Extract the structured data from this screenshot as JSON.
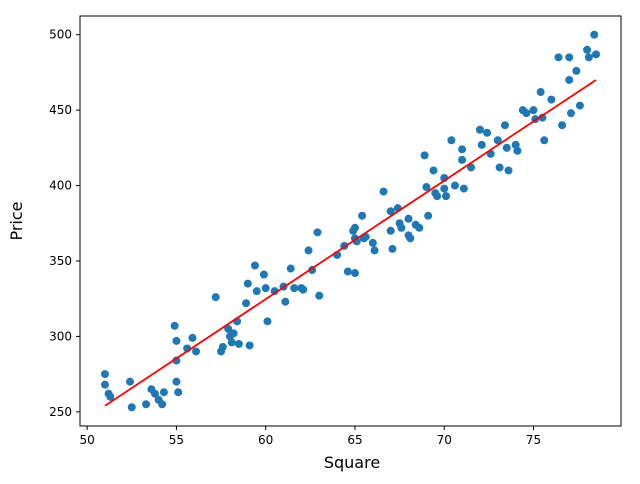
{
  "chart_data": {
    "type": "scatter",
    "title": "",
    "xlabel": "Square",
    "ylabel": "Price",
    "xlim": [
      49.6,
      79.9
    ],
    "ylim": [
      240.6,
      512.4
    ],
    "x_ticks": [
      50,
      55,
      60,
      65,
      70,
      75
    ],
    "y_ticks": [
      250,
      300,
      350,
      400,
      450,
      500
    ],
    "grid": false,
    "legend": "none",
    "point_color": "#1f77b4",
    "line_color": "#ff0000",
    "regression_line": {
      "x1": 51.0,
      "y1": 254,
      "x2": 78.5,
      "y2": 470
    },
    "points": [
      [
        51.0,
        275
      ],
      [
        51.0,
        268
      ],
      [
        51.2,
        262
      ],
      [
        51.3,
        260
      ],
      [
        52.4,
        270
      ],
      [
        52.5,
        253
      ],
      [
        53.3,
        255
      ],
      [
        53.6,
        265
      ],
      [
        53.8,
        262
      ],
      [
        54.0,
        258
      ],
      [
        54.2,
        255
      ],
      [
        54.3,
        263
      ],
      [
        54.9,
        307
      ],
      [
        55.0,
        297
      ],
      [
        55.0,
        284
      ],
      [
        55.0,
        270
      ],
      [
        55.1,
        263
      ],
      [
        55.6,
        292
      ],
      [
        55.9,
        299
      ],
      [
        56.1,
        290
      ],
      [
        57.2,
        326
      ],
      [
        57.5,
        290
      ],
      [
        57.6,
        293
      ],
      [
        57.9,
        305
      ],
      [
        58.0,
        300
      ],
      [
        58.1,
        296
      ],
      [
        58.2,
        302
      ],
      [
        58.4,
        310
      ],
      [
        58.5,
        295
      ],
      [
        58.9,
        322
      ],
      [
        59.0,
        335
      ],
      [
        59.1,
        294
      ],
      [
        59.4,
        347
      ],
      [
        59.5,
        330
      ],
      [
        59.9,
        341
      ],
      [
        60.0,
        332
      ],
      [
        60.1,
        310
      ],
      [
        60.5,
        330
      ],
      [
        61.0,
        333
      ],
      [
        61.1,
        323
      ],
      [
        61.4,
        345
      ],
      [
        61.6,
        332
      ],
      [
        62.0,
        332
      ],
      [
        62.1,
        331
      ],
      [
        62.4,
        357
      ],
      [
        62.6,
        344
      ],
      [
        62.9,
        369
      ],
      [
        63.0,
        327
      ],
      [
        64.0,
        354
      ],
      [
        64.4,
        360
      ],
      [
        64.6,
        343
      ],
      [
        64.9,
        370
      ],
      [
        65.0,
        372
      ],
      [
        65.0,
        365
      ],
      [
        65.1,
        363
      ],
      [
        65.0,
        342
      ],
      [
        65.4,
        380
      ],
      [
        65.5,
        365
      ],
      [
        65.6,
        366
      ],
      [
        66.0,
        362
      ],
      [
        66.1,
        357
      ],
      [
        66.6,
        396
      ],
      [
        67.0,
        383
      ],
      [
        67.0,
        370
      ],
      [
        67.1,
        358
      ],
      [
        67.4,
        385
      ],
      [
        67.5,
        375
      ],
      [
        67.6,
        372
      ],
      [
        68.0,
        378
      ],
      [
        68.0,
        367
      ],
      [
        68.1,
        365
      ],
      [
        68.4,
        374
      ],
      [
        68.6,
        372
      ],
      [
        68.9,
        420
      ],
      [
        69.0,
        399
      ],
      [
        69.1,
        380
      ],
      [
        69.4,
        410
      ],
      [
        69.5,
        395
      ],
      [
        69.6,
        393
      ],
      [
        70.0,
        405
      ],
      [
        70.0,
        398
      ],
      [
        70.1,
        393
      ],
      [
        70.4,
        430
      ],
      [
        70.6,
        400
      ],
      [
        71.0,
        424
      ],
      [
        71.0,
        417
      ],
      [
        71.1,
        398
      ],
      [
        71.5,
        412
      ],
      [
        72.0,
        437
      ],
      [
        72.1,
        427
      ],
      [
        72.4,
        435
      ],
      [
        72.6,
        421
      ],
      [
        73.0,
        430
      ],
      [
        73.1,
        412
      ],
      [
        73.4,
        440
      ],
      [
        73.5,
        425
      ],
      [
        73.6,
        410
      ],
      [
        74.0,
        427
      ],
      [
        74.1,
        423
      ],
      [
        74.4,
        450
      ],
      [
        74.6,
        448
      ],
      [
        75.0,
        450
      ],
      [
        75.1,
        444
      ],
      [
        75.4,
        462
      ],
      [
        75.5,
        445
      ],
      [
        75.6,
        430
      ],
      [
        76.0,
        457
      ],
      [
        76.4,
        485
      ],
      [
        76.6,
        440
      ],
      [
        77.0,
        485
      ],
      [
        77.0,
        470
      ],
      [
        77.1,
        448
      ],
      [
        77.4,
        476
      ],
      [
        77.6,
        453
      ],
      [
        78.0,
        490
      ],
      [
        78.1,
        485
      ],
      [
        78.4,
        500
      ],
      [
        78.5,
        487
      ]
    ]
  }
}
